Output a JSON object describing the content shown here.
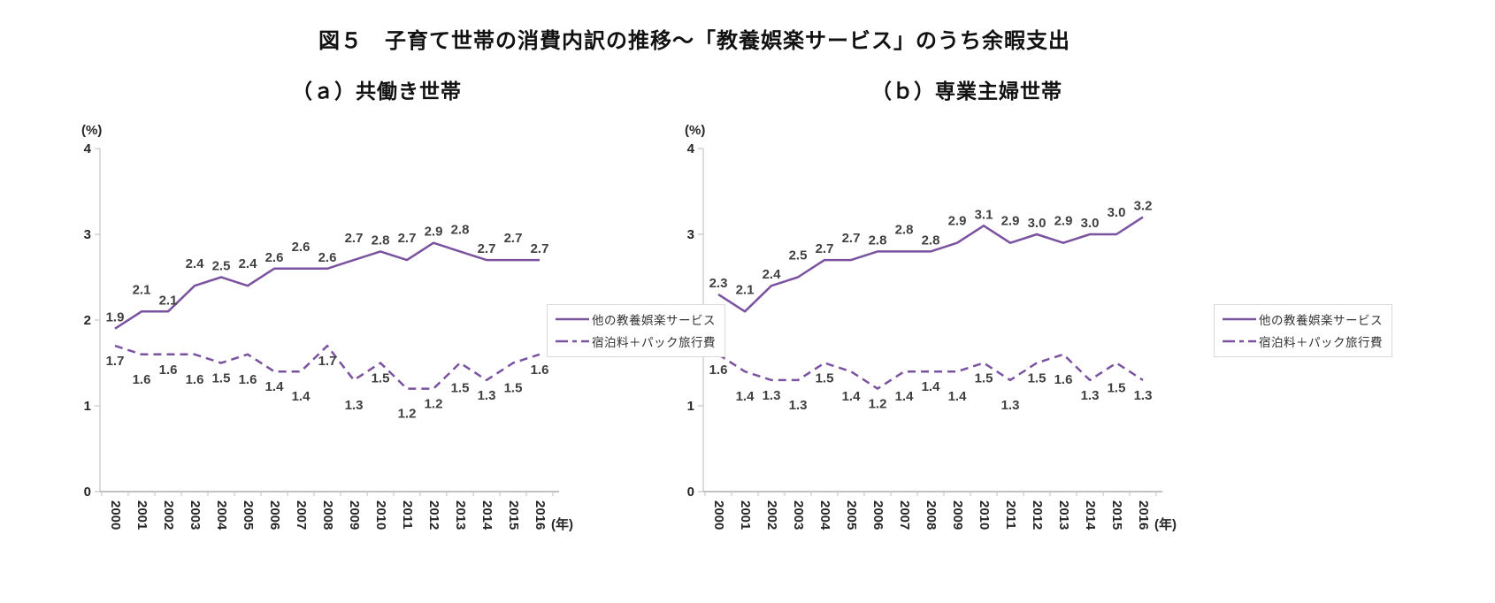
{
  "title": "図５　子育て世帯の消費内訳の推移～「教養娯楽サービス」のうち余暇支出",
  "colors": {
    "line": "#7B52A0",
    "label_text": "#404040",
    "axis_y": "#c9c9c9",
    "axis_x": "#9e9e9e",
    "tick_text": "#262626",
    "legend_border": "#d9d9d9"
  },
  "charts": [
    {
      "subtitle": "（ａ）共働き世帯",
      "unit_label": "(%)",
      "year_label": "(年)",
      "legend": [
        {
          "label": "他の教養娯楽サービス",
          "style": "solid"
        },
        {
          "label": "宿泊料＋パック旅行費",
          "style": "dashed"
        }
      ]
    },
    {
      "subtitle": "（ｂ）専業主婦世帯",
      "unit_label": "(%)",
      "year_label": "(年)",
      "legend": [
        {
          "label": "他の教養娯楽サービス",
          "style": "solid"
        },
        {
          "label": "宿泊料＋パック旅行費",
          "style": "dashed"
        }
      ]
    }
  ],
  "chart_data": [
    {
      "type": "line",
      "title": "（ａ）共働き世帯",
      "xlabel": "(年)",
      "ylabel": "(%)",
      "ylim": [
        0,
        4
      ],
      "yticks": [
        0,
        1,
        2,
        3,
        4
      ],
      "grid": false,
      "legend_position": "right-middle",
      "x": [
        2000,
        2001,
        2002,
        2003,
        2004,
        2005,
        2006,
        2007,
        2008,
        2009,
        2010,
        2011,
        2012,
        2013,
        2014,
        2015,
        2016
      ],
      "series": [
        {
          "name": "他の教養娯楽サービス",
          "style": "solid",
          "values": [
            1.9,
            2.1,
            2.1,
            2.4,
            2.5,
            2.4,
            2.6,
            2.6,
            2.6,
            2.7,
            2.8,
            2.7,
            2.9,
            2.8,
            2.7,
            2.7,
            2.7
          ]
        },
        {
          "name": "宿泊料＋パック旅行費",
          "style": "dashed",
          "values": [
            1.7,
            1.6,
            1.6,
            1.6,
            1.5,
            1.6,
            1.4,
            1.4,
            1.7,
            1.3,
            1.5,
            1.2,
            1.2,
            1.5,
            1.3,
            1.5,
            1.6
          ]
        }
      ]
    },
    {
      "type": "line",
      "title": "（ｂ）専業主婦世帯",
      "xlabel": "(年)",
      "ylabel": "(%)",
      "ylim": [
        0,
        4
      ],
      "yticks": [
        0,
        1,
        2,
        3,
        4
      ],
      "grid": false,
      "legend_position": "right-middle",
      "x": [
        2000,
        2001,
        2002,
        2003,
        2004,
        2005,
        2006,
        2007,
        2008,
        2009,
        2010,
        2011,
        2012,
        2013,
        2014,
        2015,
        2016
      ],
      "series": [
        {
          "name": "他の教養娯楽サービス",
          "style": "solid",
          "values": [
            2.3,
            2.1,
            2.4,
            2.5,
            2.7,
            2.7,
            2.8,
            2.8,
            2.8,
            2.9,
            3.1,
            2.9,
            3.0,
            2.9,
            3.0,
            3.0,
            3.2
          ]
        },
        {
          "name": "宿泊料＋パック旅行費",
          "style": "dashed",
          "values": [
            1.6,
            1.4,
            1.3,
            1.3,
            1.5,
            1.4,
            1.2,
            1.4,
            1.4,
            1.4,
            1.5,
            1.3,
            1.5,
            1.6,
            1.3,
            1.5,
            1.3
          ]
        }
      ]
    }
  ]
}
